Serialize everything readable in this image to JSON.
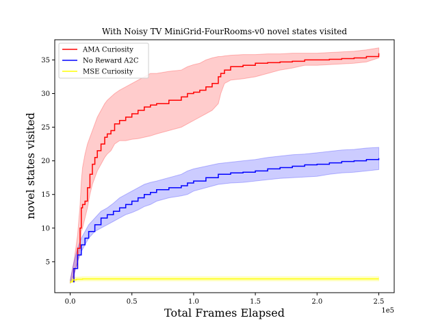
{
  "chart_data": {
    "type": "line",
    "title": "With Noisy TV MiniGrid-FourRooms-v0 novel states visited",
    "xlabel": "Total Frames Elapsed",
    "ylabel": "novel states visited",
    "x_offset_label": "1e5",
    "xlim": [
      -0.125,
      2.625
    ],
    "ylim": [
      0.4,
      38.0
    ],
    "xticks": [
      0.0,
      0.5,
      1.0,
      1.5,
      2.0,
      2.5
    ],
    "xtick_labels": [
      "0.0",
      "0.5",
      "1.0",
      "1.5",
      "2.0",
      "2.5"
    ],
    "yticks": [
      5,
      10,
      15,
      20,
      25,
      30,
      35
    ],
    "ytick_labels": [
      "5",
      "10",
      "15",
      "20",
      "25",
      "30",
      "35"
    ],
    "grid": false,
    "legend_position": "upper-left",
    "series": [
      {
        "name": "AMA Curiosity",
        "color": "#ff0000",
        "band_color": "#ff0000",
        "x": [
          0.0,
          0.03,
          0.06,
          0.08,
          0.09,
          0.1,
          0.12,
          0.14,
          0.16,
          0.18,
          0.2,
          0.22,
          0.25,
          0.28,
          0.3,
          0.33,
          0.36,
          0.4,
          0.45,
          0.5,
          0.55,
          0.6,
          0.65,
          0.7,
          0.8,
          0.9,
          0.95,
          1.0,
          1.05,
          1.1,
          1.15,
          1.2,
          1.22,
          1.25,
          1.3,
          1.4,
          1.5,
          1.6,
          1.7,
          1.8,
          1.9,
          2.0,
          2.1,
          2.2,
          2.3,
          2.4,
          2.5
        ],
        "mean": [
          2.0,
          4.0,
          7.0,
          10.0,
          13.0,
          13.5,
          14.0,
          16.0,
          18.0,
          19.5,
          20.5,
          21.5,
          22.5,
          23.5,
          24.0,
          24.5,
          25.5,
          26.0,
          26.5,
          27.0,
          27.5,
          28.0,
          28.3,
          28.5,
          29.0,
          29.5,
          30.0,
          30.2,
          30.5,
          31.0,
          31.5,
          32.5,
          33.0,
          33.5,
          34.0,
          34.2,
          34.5,
          34.6,
          34.7,
          34.8,
          35.0,
          35.0,
          35.1,
          35.2,
          35.3,
          35.5,
          36.0
        ],
        "lower": [
          1.8,
          3.0,
          5.0,
          7.0,
          9.5,
          10.0,
          11.5,
          13.0,
          15.0,
          16.5,
          17.5,
          18.5,
          19.5,
          20.5,
          21.0,
          21.5,
          22.5,
          23.0,
          23.0,
          23.2,
          23.3,
          23.5,
          23.7,
          24.0,
          24.5,
          25.0,
          25.5,
          26.0,
          26.5,
          27.0,
          27.5,
          28.5,
          30.0,
          31.5,
          32.0,
          32.2,
          32.5,
          33.0,
          33.5,
          33.8,
          34.2,
          34.2,
          34.3,
          34.4,
          34.5,
          34.7,
          35.3
        ],
        "upper": [
          2.2,
          5.0,
          9.0,
          13.5,
          17.0,
          19.0,
          21.0,
          22.5,
          23.5,
          24.5,
          25.5,
          26.5,
          27.5,
          28.5,
          29.0,
          29.5,
          30.0,
          30.5,
          31.0,
          31.5,
          32.0,
          32.5,
          33.0,
          33.0,
          33.3,
          33.5,
          34.0,
          34.3,
          34.5,
          35.0,
          35.3,
          35.5,
          35.5,
          35.6,
          35.7,
          35.8,
          35.8,
          35.9,
          35.9,
          36.0,
          36.0,
          36.0,
          36.1,
          36.2,
          36.3,
          36.5,
          36.8
        ]
      },
      {
        "name": "No Reward A2C",
        "color": "#0000ff",
        "band_color": "#0000ff",
        "x": [
          0.0,
          0.03,
          0.06,
          0.09,
          0.12,
          0.15,
          0.2,
          0.25,
          0.3,
          0.35,
          0.4,
          0.45,
          0.5,
          0.55,
          0.6,
          0.65,
          0.7,
          0.8,
          0.9,
          0.95,
          1.0,
          1.1,
          1.2,
          1.3,
          1.4,
          1.5,
          1.6,
          1.7,
          1.8,
          1.9,
          2.0,
          2.1,
          2.2,
          2.3,
          2.4,
          2.5
        ],
        "mean": [
          2.0,
          4.0,
          6.0,
          7.5,
          8.5,
          9.5,
          10.5,
          11.5,
          12.0,
          12.5,
          13.0,
          13.5,
          14.0,
          14.5,
          15.0,
          15.3,
          15.7,
          16.0,
          16.3,
          16.7,
          17.0,
          17.5,
          18.0,
          18.2,
          18.3,
          18.5,
          18.8,
          19.0,
          19.2,
          19.4,
          19.5,
          19.7,
          19.9,
          20.0,
          20.2,
          20.4
        ],
        "lower": [
          1.8,
          3.0,
          5.0,
          6.5,
          7.5,
          8.5,
          9.5,
          10.0,
          10.5,
          11.0,
          11.5,
          12.0,
          12.3,
          12.7,
          13.2,
          13.5,
          14.0,
          14.5,
          14.8,
          15.0,
          15.5,
          16.0,
          16.5,
          16.7,
          16.8,
          17.0,
          17.2,
          17.4,
          17.5,
          17.6,
          17.7,
          18.0,
          18.2,
          18.3,
          18.5,
          18.7
        ],
        "upper": [
          2.2,
          5.0,
          7.0,
          8.5,
          9.5,
          10.5,
          11.5,
          12.5,
          13.0,
          13.7,
          14.5,
          15.0,
          15.5,
          16.0,
          16.5,
          16.8,
          17.0,
          17.5,
          18.0,
          18.5,
          18.8,
          19.2,
          19.6,
          19.8,
          20.0,
          20.2,
          20.5,
          20.7,
          20.9,
          21.0,
          21.2,
          21.4,
          21.6,
          21.7,
          21.9,
          22.0
        ]
      },
      {
        "name": "MSE Curiosity",
        "color": "#ffff00",
        "band_color": "#ffff00",
        "x": [
          0.0,
          0.02,
          0.05,
          0.1,
          0.5,
          1.0,
          1.5,
          2.0,
          2.5
        ],
        "mean": [
          2.0,
          2.3,
          2.4,
          2.45,
          2.45,
          2.45,
          2.45,
          2.45,
          2.45
        ],
        "lower": [
          1.8,
          2.0,
          2.1,
          2.15,
          2.15,
          2.15,
          2.15,
          2.15,
          2.15
        ],
        "upper": [
          2.2,
          2.6,
          2.7,
          2.75,
          2.75,
          2.75,
          2.75,
          2.75,
          2.75
        ]
      }
    ]
  }
}
